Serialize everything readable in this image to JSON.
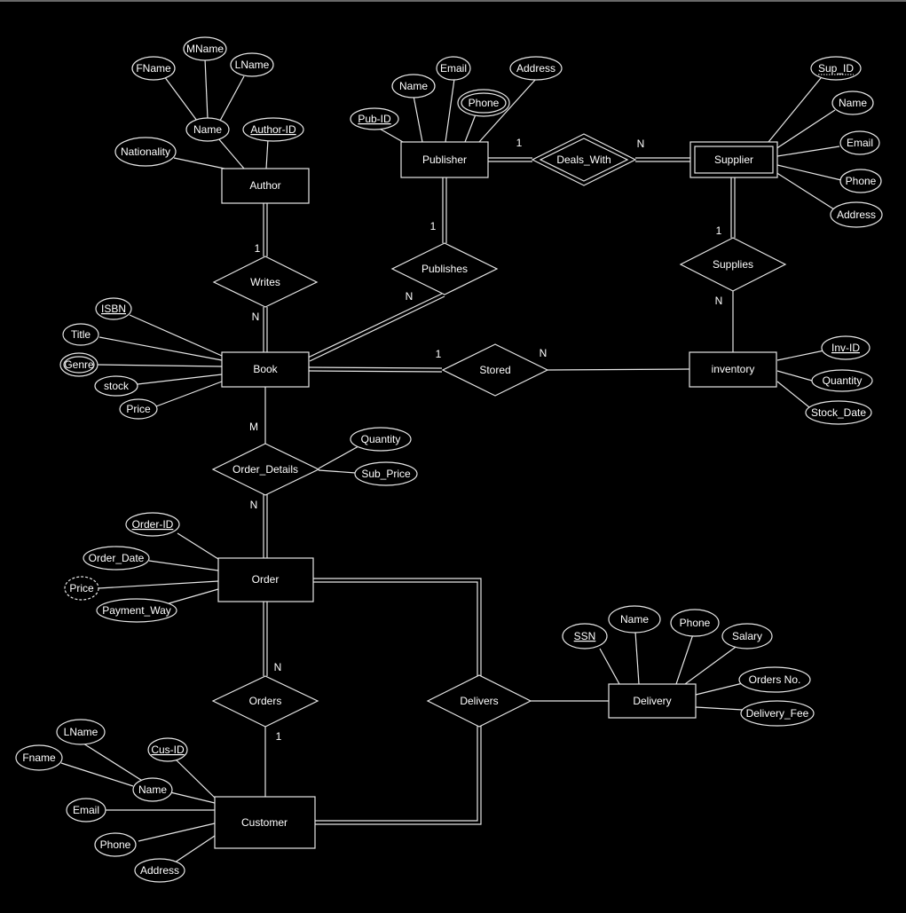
{
  "entities": {
    "author": {
      "label": "Author"
    },
    "publisher": {
      "label": "Publisher"
    },
    "supplier": {
      "label": "Supplier"
    },
    "book": {
      "label": "Book"
    },
    "inventory": {
      "label": "inventory"
    },
    "order": {
      "label": "Order"
    },
    "delivery": {
      "label": "Delivery"
    },
    "customer": {
      "label": "Customer"
    }
  },
  "relationships": {
    "writes": {
      "label": "Writes"
    },
    "publishes": {
      "label": "Publishes"
    },
    "deals_with": {
      "label": "Deals_With"
    },
    "supplies": {
      "label": "Supplies"
    },
    "stored": {
      "label": "Stored"
    },
    "order_details": {
      "label": "Order_Details"
    },
    "orders": {
      "label": "Orders"
    },
    "delivers": {
      "label": "Delivers"
    }
  },
  "attributes": {
    "author_fname": "FName",
    "author_mname": "MName",
    "author_lname": "LName",
    "author_name": "Name",
    "author_id": "Author-ID",
    "author_nationality": "Nationality",
    "pub_name": "Name",
    "pub_email": "Email",
    "pub_address": "Address",
    "pub_id": "Pub-ID",
    "pub_phone": "Phone",
    "sup_id": "Sup_ID",
    "sup_name": "Name",
    "sup_email": "Email",
    "sup_phone": "Phone",
    "sup_address": "Address",
    "book_isbn": "ISBN",
    "book_title": "Title",
    "book_genre": "Genre",
    "book_stock": "stock",
    "book_price": "Price",
    "inv_id": "Inv-ID",
    "inv_quantity": "Quantity",
    "inv_stock_date": "Stock_Date",
    "od_quantity": "Quantity",
    "od_sub_price": "Sub_Price",
    "order_id": "Order-ID",
    "order_date": "Order_Date",
    "order_price": "Price",
    "order_payment": "Payment_Way",
    "del_ssn": "SSN",
    "del_name": "Name",
    "del_phone": "Phone",
    "del_salary": "Salary",
    "del_orders_no": "Orders No.",
    "del_fee": "Delivery_Fee",
    "cus_lname": "LName",
    "cus_fname": "Fname",
    "cus_id": "Cus-ID",
    "cus_name": "Name",
    "cus_email": "Email",
    "cus_phone": "Phone",
    "cus_address": "Address"
  },
  "cardinalities": {
    "writes_author": "1",
    "writes_book": "N",
    "publishes_publisher": "1",
    "publishes_book": "N",
    "deals_publisher": "1",
    "deals_supplier": "N",
    "supplies_supplier": "1",
    "supplies_inventory": "N",
    "stored_book": "1",
    "stored_inventory": "N",
    "od_book": "M",
    "od_order": "N",
    "orders_order": "N",
    "orders_customer": "1"
  }
}
